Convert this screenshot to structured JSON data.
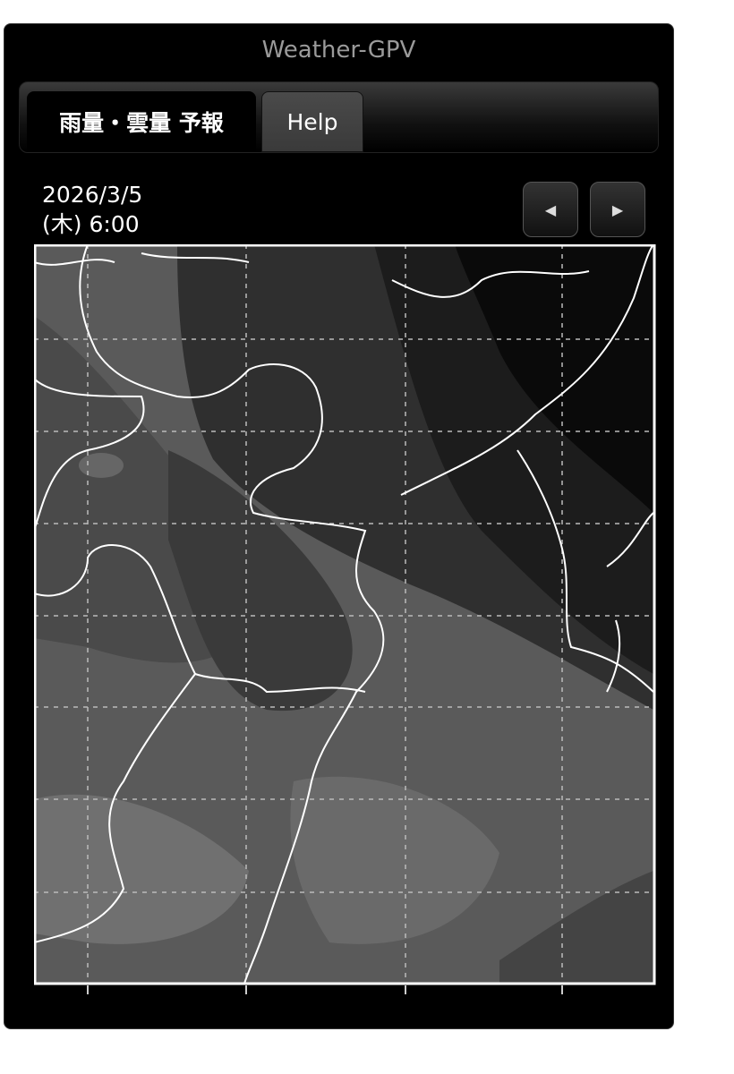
{
  "app": {
    "title": "Weather-GPV"
  },
  "tabs": [
    {
      "label": "雨量・雲量 予報",
      "active": true
    },
    {
      "label": "Help",
      "active": false
    }
  ],
  "forecast": {
    "date": "2026/3/5",
    "time": "(木) 6:00"
  },
  "nav": {
    "prev_icon": "triangle-left-icon",
    "next_icon": "triangle-right-icon",
    "prev_glyph": "◀",
    "next_glyph": "▶"
  },
  "map": {
    "type": "cloud cover forecast map, greyscale shading with white coastlines and dashed lat/lon grid",
    "colors": {
      "background": "#000000",
      "coast": "#ffffff",
      "shade_light": "#7a7a7a",
      "shade_dark": "#111111"
    }
  }
}
